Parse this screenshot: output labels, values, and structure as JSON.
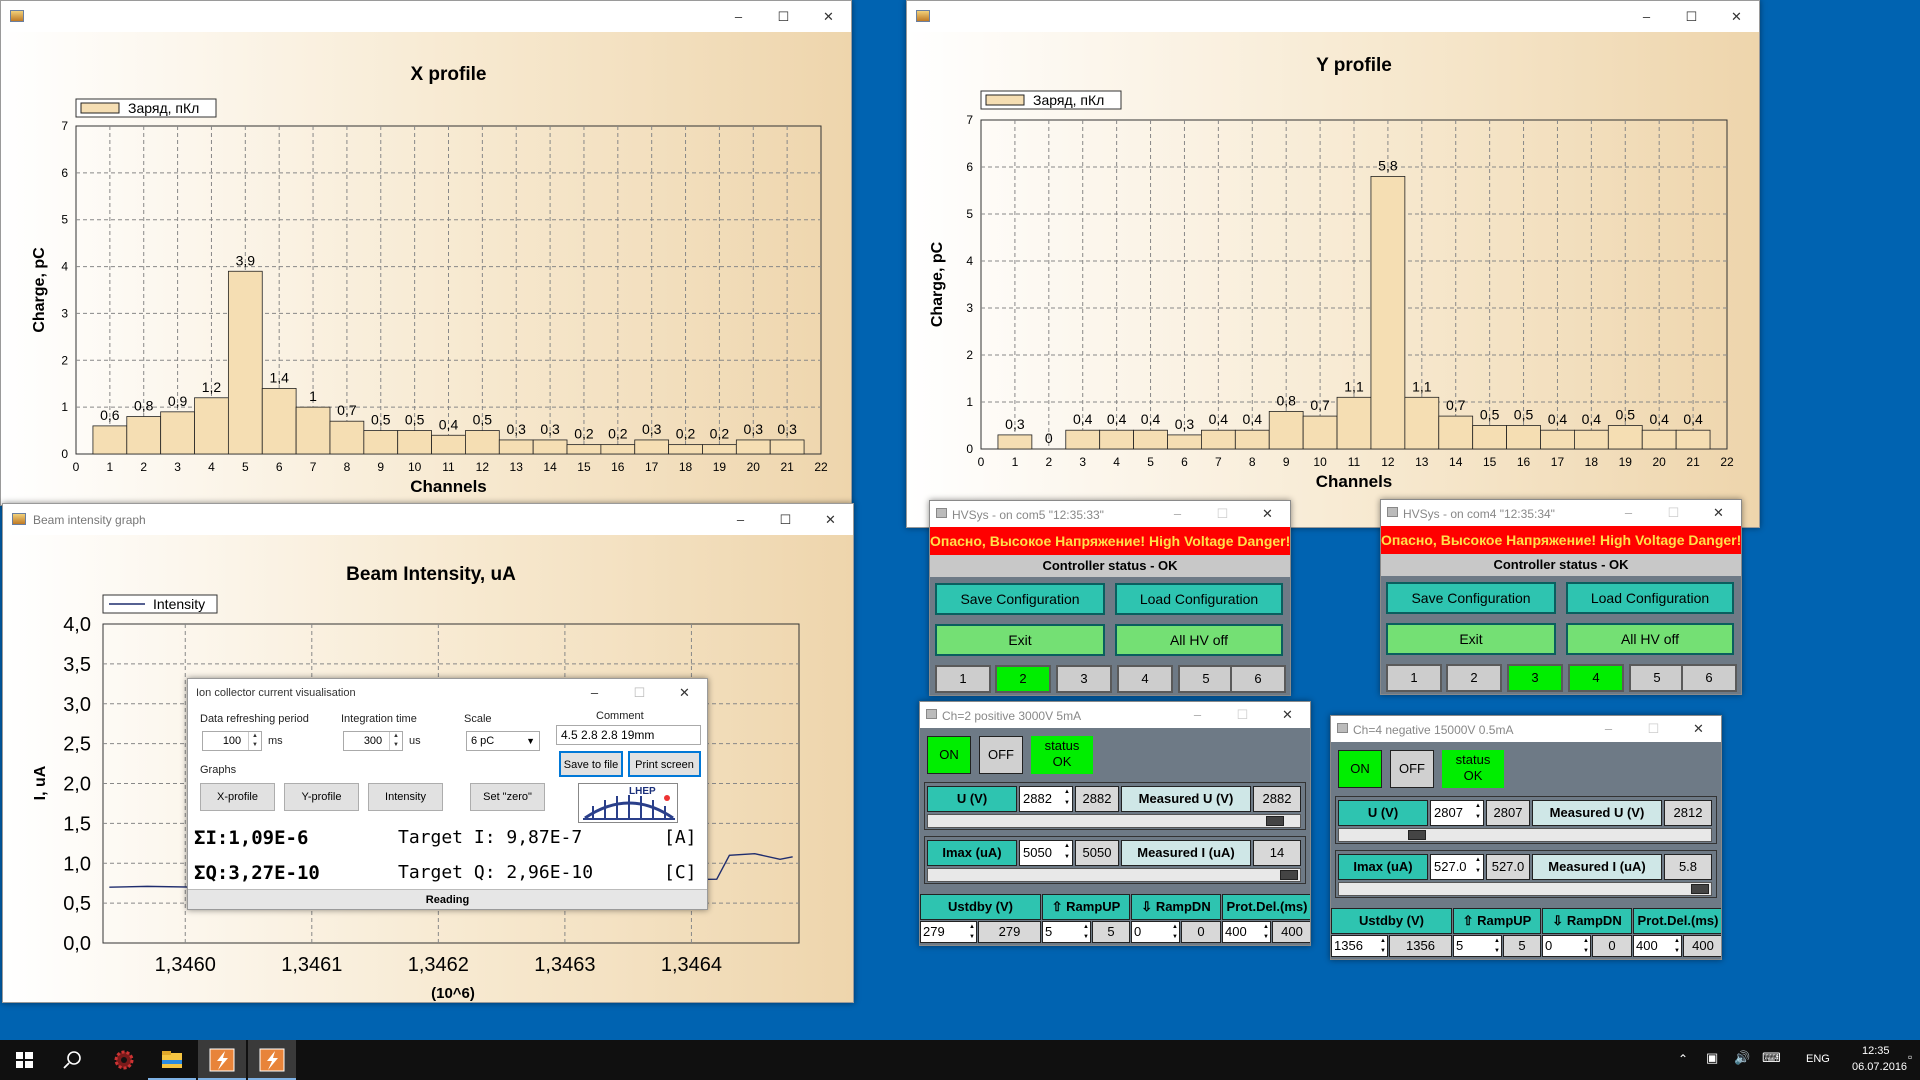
{
  "colors": {
    "desktop": "#0063b1",
    "bar_fill": "#f5deb3",
    "green": "#00ee00",
    "teal": "#2ec4b0",
    "danger": "#ff0000",
    "danger_text": "#ffe04a"
  },
  "xwin": {
    "title": "",
    "chart": {
      "type": "bar",
      "title": "X profile",
      "legend": "Заряд, пКл",
      "xlabel": "Channels",
      "ylabel": "Charge, pC",
      "ylim": [
        0,
        7
      ],
      "xlim": [
        0,
        22
      ],
      "yticks": [
        "0",
        "1",
        "2",
        "3",
        "4",
        "5",
        "6",
        "7"
      ],
      "xticks": [
        "0",
        "1",
        "2",
        "3",
        "4",
        "5",
        "6",
        "7",
        "8",
        "9",
        "10",
        "11",
        "12",
        "13",
        "14",
        "15",
        "16",
        "17",
        "18",
        "19",
        "20",
        "21",
        "22"
      ],
      "x": [
        1,
        2,
        3,
        4,
        5,
        6,
        7,
        8,
        9,
        10,
        11,
        12,
        13,
        14,
        15,
        16,
        17,
        18,
        19,
        20,
        21
      ],
      "values": [
        0.6,
        0.8,
        0.9,
        1.2,
        3.9,
        1.4,
        1.0,
        0.7,
        0.5,
        0.5,
        0.4,
        0.5,
        0.3,
        0.3,
        0.2,
        0.2,
        0.3,
        0.2,
        0.2,
        0.3,
        0.3
      ],
      "labels": [
        "0,6",
        "0,8",
        "0,9",
        "1,2",
        "3,9",
        "1,4",
        "1",
        "0,7",
        "0,5",
        "0,5",
        "0,4",
        "0,5",
        "0,3",
        "0,3",
        "0,2",
        "0,2",
        "0,3",
        "0,2",
        "0,2",
        "0,3",
        "0,3"
      ]
    }
  },
  "ywin": {
    "title": "",
    "chart": {
      "type": "bar",
      "title": "Y profile",
      "legend": "Заряд, пКл",
      "xlabel": "Channels",
      "ylabel": "Charge, pC",
      "ylim": [
        0,
        7
      ],
      "xlim": [
        0,
        22
      ],
      "yticks": [
        "0",
        "1",
        "2",
        "3",
        "4",
        "5",
        "6",
        "7"
      ],
      "xticks": [
        "0",
        "1",
        "2",
        "3",
        "4",
        "5",
        "6",
        "7",
        "8",
        "9",
        "10",
        "11",
        "12",
        "13",
        "14",
        "15",
        "16",
        "17",
        "18",
        "19",
        "20",
        "21",
        "22"
      ],
      "x": [
        1,
        2,
        3,
        4,
        5,
        6,
        7,
        8,
        9,
        10,
        11,
        12,
        13,
        14,
        15,
        16,
        17,
        18,
        19,
        20,
        21
      ],
      "values": [
        0.3,
        0,
        0.4,
        0.4,
        0.4,
        0.3,
        0.4,
        0.4,
        0.8,
        0.7,
        1.1,
        5.8,
        1.1,
        0.7,
        0.5,
        0.5,
        0.4,
        0.4,
        0.5,
        0.4,
        0.4
      ],
      "labels": [
        "0,3",
        "0",
        "0,4",
        "0,4",
        "0,4",
        "0,3",
        "0,4",
        "0,4",
        "0,8",
        "0,7",
        "1,1",
        "5,8",
        "1,1",
        "0,7",
        "0,5",
        "0,5",
        "0,4",
        "0,4",
        "0,5",
        "0,4",
        "0,4"
      ]
    }
  },
  "bwin": {
    "title": "Beam intensity graph",
    "chart": {
      "type": "line",
      "title": "Beam Intensity, uA",
      "legend": "Intensity",
      "ylabel": "I, uA",
      "xlabel_sub": "(10^6)",
      "ylim": [
        0,
        4
      ],
      "yticks": [
        "0,0",
        "0,5",
        "1,0",
        "1,5",
        "2,0",
        "2,5",
        "3,0",
        "3,5",
        "4,0"
      ],
      "xticks": [
        "1,3460",
        "1,3461",
        "1,3462",
        "1,3463",
        "1,3464"
      ],
      "x": [
        1.34594,
        1.34597,
        1.34601,
        1.34604,
        1.34642,
        1.34643,
        1.34645,
        1.34647,
        1.34648
      ],
      "y": [
        0.7,
        0.71,
        0.7,
        0.71,
        0.8,
        1.1,
        1.12,
        1.05,
        1.08
      ]
    }
  },
  "ion": {
    "title": "Ion collector current visualisation",
    "refresh_label": "Data refreshing period",
    "refresh_value": "100",
    "refresh_unit": "ms",
    "integ_label": "Integration time",
    "integ_value": "300",
    "integ_unit": "us",
    "scale_label": "Scale",
    "scale_value": "6 pC",
    "comment_label": "Comment",
    "comment_value": "4.5 2.8 2.8 19mm",
    "save_btn": "Save to file",
    "print_btn": "Print screen",
    "graphs_label": "Graphs",
    "xprofile": "X-profile",
    "yprofile": "Y-profile",
    "intensity": "Intensity",
    "setzero": "Set \"zero\"",
    "logo": "LHEP",
    "sum_i": "ΣI:1,09E-6",
    "target_i": "Target I: 9,87E-7",
    "unit_a": "[A]",
    "sum_q": "ΣQ:3,27E-10",
    "target_q": "Target Q: 2,96E-10",
    "unit_c": "[C]",
    "status": "Reading"
  },
  "hv1": {
    "title": "HVSys - on com5 \"12:35:33\"",
    "danger": "Опасно, Высокое Напряжение! High Voltage Danger!",
    "status": "Controller status - OK",
    "save": "Save Configuration",
    "load": "Load Configuration",
    "exit": "Exit",
    "alloff": "All HV off",
    "channels": [
      "1",
      "2",
      "3",
      "4",
      "5",
      "6"
    ]
  },
  "hv2": {
    "title": "HVSys - on com4 \"12:35:34\"",
    "danger": "Опасно, Высокое Напряжение! High Voltage Danger!",
    "status": "Controller status - OK",
    "save": "Save Configuration",
    "load": "Load Configuration",
    "exit": "Exit",
    "alloff": "All HV off",
    "channels": [
      "1",
      "2",
      "3",
      "4",
      "5",
      "6"
    ]
  },
  "ch1": {
    "title": "Ch=2 positive 3000V 5mA",
    "on": "ON",
    "off": "OFF",
    "status": "status OK",
    "u_label": "U (V)",
    "u_set": "2882",
    "u_val": "2882",
    "mu_label": "Measured U (V)",
    "mu_val": "2882",
    "u_slider": 0.96,
    "i_label": "Imax (uA)",
    "i_set": "5050",
    "i_val": "5050",
    "mi_label": "Measured I (uA)",
    "mi_val": "14",
    "i_slider": 1.0,
    "ustdby": "Ustdby (V)",
    "rampup": "RampUP",
    "rampdn": "RampDN",
    "prot": "Prot.Del.(ms)",
    "ustdby_set": "279",
    "ustdby_val": "279",
    "rampup_set": "5",
    "rampup_val": "5",
    "rampdn_set": "0",
    "rampdn_val": "0",
    "prot_set": "400",
    "prot_val": "400"
  },
  "ch2": {
    "title": "Ch=4 negative 15000V 0.5mA",
    "on": "ON",
    "off": "OFF",
    "status": "status OK",
    "u_label": "U (V)",
    "u_set": "2807",
    "u_val": "2807",
    "mu_label": "Measured U (V)",
    "mu_val": "2812",
    "u_slider": 0.19,
    "i_label": "Imax (uA)",
    "i_set": "527.0",
    "i_val": "527.0",
    "mi_label": "Measured I (uA)",
    "mi_val": "5.8",
    "i_slider": 1.0,
    "ustdby": "Ustdby (V)",
    "rampup": "RampUP",
    "rampdn": "RampDN",
    "prot": "Prot.Del.(ms)",
    "ustdby_set": "1356",
    "ustdby_val": "1356",
    "rampup_set": "5",
    "rampup_val": "5",
    "rampdn_set": "0",
    "rampdn_val": "0",
    "prot_set": "400",
    "prot_val": "400"
  },
  "taskbar": {
    "lang": "ENG",
    "time": "12:35",
    "date": "06.07.2016",
    "icons": [
      "windows-start-icon",
      "search-icon",
      "app-gear-icon",
      "file-explorer-icon",
      "app-lightning-icon",
      "app-lightning-icon"
    ]
  }
}
